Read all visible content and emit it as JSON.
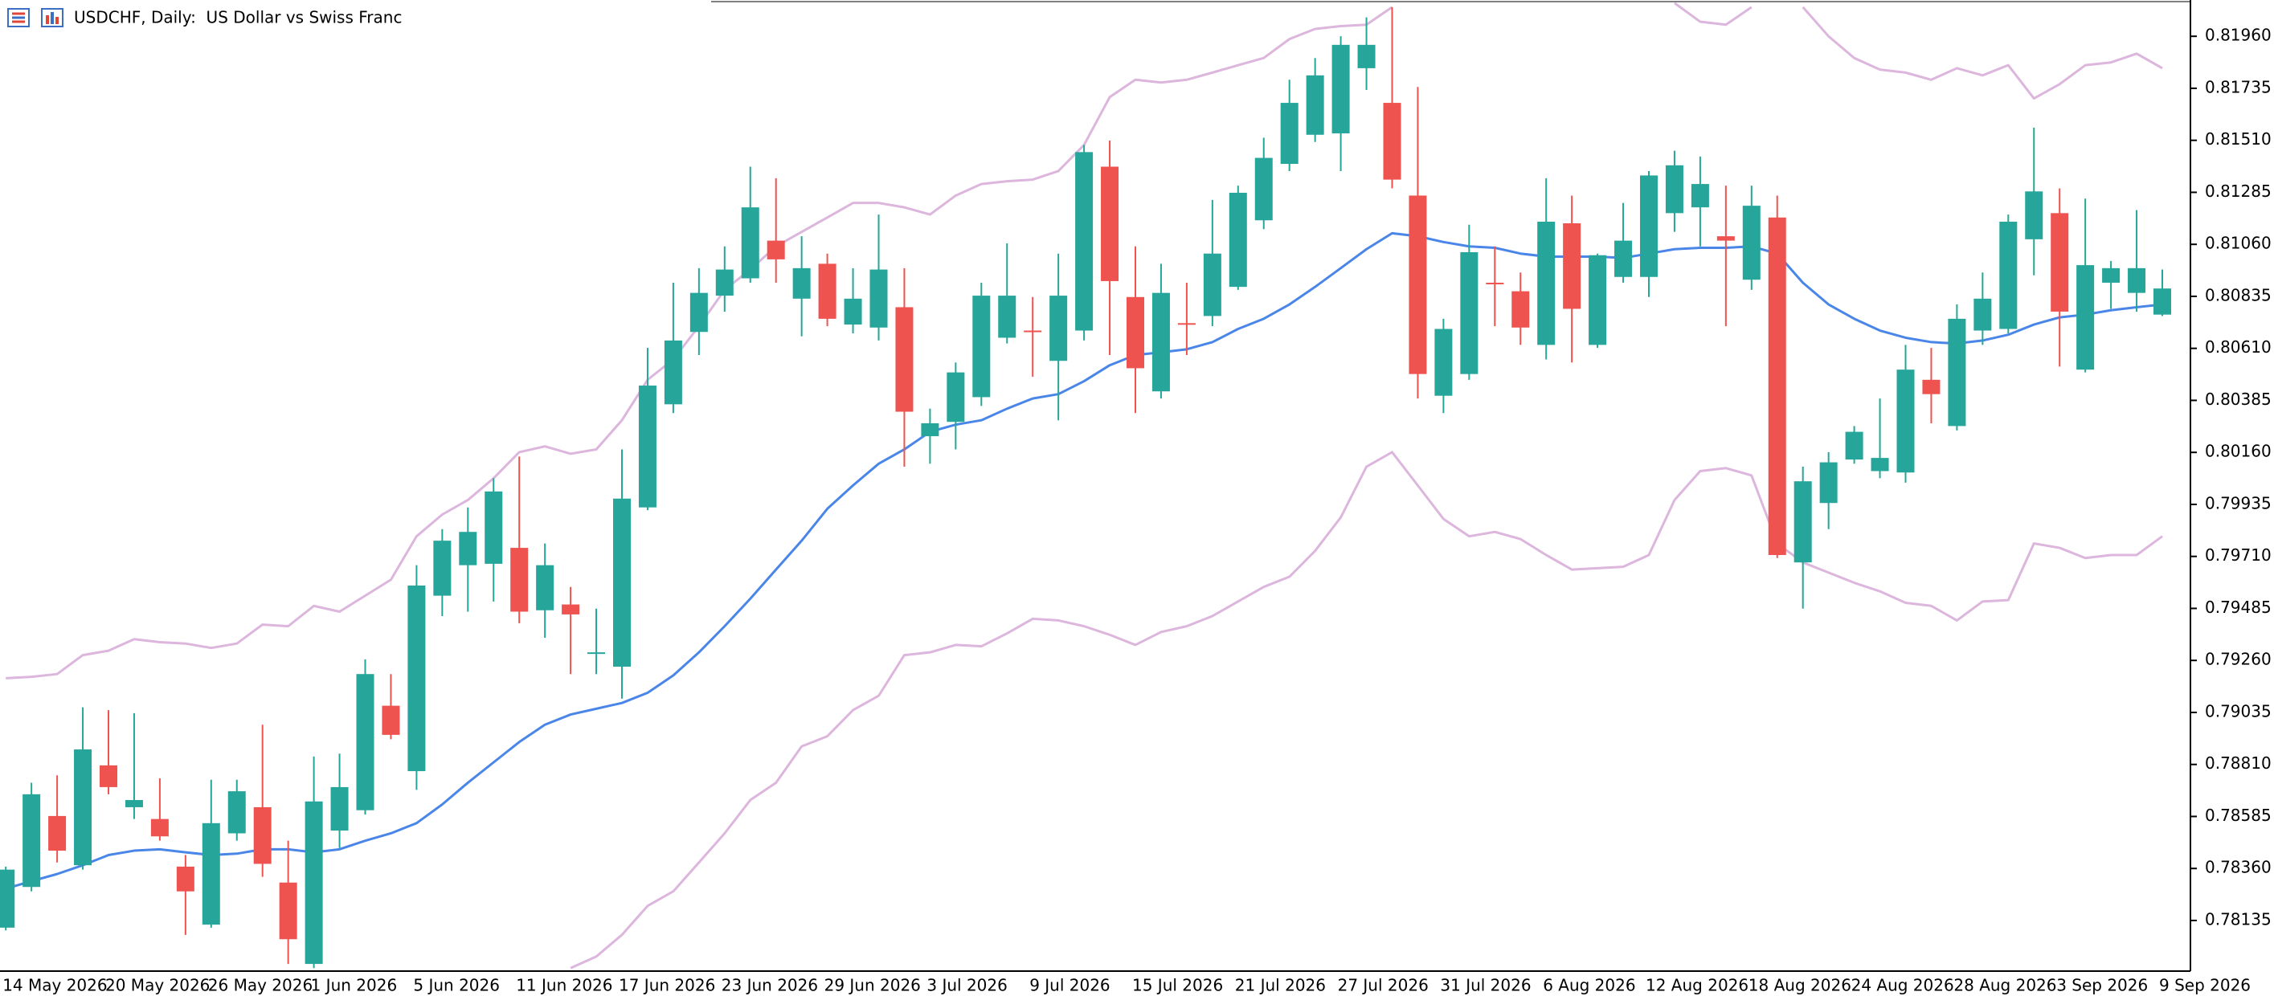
{
  "chart_data": {
    "type": "candlestick",
    "title": "USDCHF, Daily:  US Dollar vs Swiss Franc",
    "categories": [
      "14 May 2026",
      null,
      null,
      null,
      "20 May 2026",
      null,
      null,
      null,
      "26 May 2026",
      null,
      null,
      null,
      "1 Jun 2026",
      null,
      null,
      null,
      "5 Jun 2026",
      null,
      null,
      null,
      "11 Jun 2026",
      null,
      null,
      null,
      "17 Jun 2026",
      null,
      null,
      null,
      "23 Jun 2026",
      null,
      null,
      null,
      "29 Jun 2026",
      null,
      null,
      null,
      "3 Jul 2026",
      null,
      null,
      null,
      "9 Jul 2026",
      null,
      null,
      null,
      "15 Jul 2026",
      null,
      null,
      null,
      "21 Jul 2026",
      null,
      null,
      null,
      "27 Jul 2026",
      null,
      null,
      null,
      "31 Jul 2026",
      null,
      null,
      null,
      "6 Aug 2026",
      null,
      null,
      null,
      "12 Aug 2026",
      null,
      null,
      null,
      "18 Aug 2026",
      null,
      null,
      null,
      "24 Aug 2026",
      null,
      null,
      null,
      "28 Aug 2026",
      null,
      null,
      null,
      "3 Sep 2026",
      null,
      null,
      null,
      "9 Sep 2026"
    ],
    "open": [
      0.78104,
      0.7828,
      0.78587,
      0.78374,
      0.78806,
      0.78625,
      0.78574,
      0.78368,
      0.78117,
      0.78512,
      0.78625,
      0.78299,
      0.77947,
      0.78524,
      0.78612,
      0.79064,
      0.78781,
      0.7954,
      0.79672,
      0.79678,
      0.79747,
      0.79477,
      0.79502,
      0.79289,
      0.79233,
      0.79922,
      0.80368,
      0.80681,
      0.80838,
      0.80913,
      0.81076,
      0.80825,
      0.80976,
      0.80713,
      0.807,
      0.80788,
      0.8023,
      0.80292,
      0.80399,
      0.80656,
      0.80687,
      0.80556,
      0.80687,
      0.81396,
      0.80832,
      0.80424,
      0.80719,
      0.8075,
      0.80876,
      0.81164,
      0.81408,
      0.81534,
      0.8154,
      0.81822,
      0.81672,
      0.81271,
      0.80405,
      0.80499,
      0.80894,
      0.80857,
      0.80625,
      0.81151,
      0.80625,
      0.80919,
      0.80919,
      0.81195,
      0.8122,
      0.81095,
      0.80907,
      0.81176,
      0.79684,
      0.79941,
      0.80129,
      0.80079,
      0.80073,
      0.80474,
      0.80274,
      0.80687,
      0.80694,
      0.81082,
      0.81195,
      0.80518,
      0.80894,
      0.8085,
      0.80756
    ],
    "high": [
      0.78368,
      0.78731,
      0.78763,
      0.79057,
      0.79045,
      0.79032,
      0.7875,
      0.78418,
      0.78744,
      0.78744,
      0.78982,
      0.7848,
      0.78844,
      0.78857,
      0.79264,
      0.79201,
      0.79672,
      0.79828,
      0.79922,
      0.80048,
      0.80142,
      0.79766,
      0.79578,
      0.79484,
      0.80173,
      0.80612,
      0.80894,
      0.80957,
      0.81051,
      0.81396,
      0.81346,
      0.81095,
      0.8102,
      0.80957,
      0.81189,
      0.80957,
      0.80349,
      0.80549,
      0.80894,
      0.81064,
      0.80832,
      0.8102,
      0.8149,
      0.81509,
      0.81051,
      0.80976,
      0.80894,
      0.81252,
      0.81314,
      0.81521,
      0.81772,
      0.81866,
      0.8196,
      0.82042,
      0.82086,
      0.81741,
      0.80738,
      0.81145,
      0.81051,
      0.80938,
      0.81346,
      0.81271,
      0.8102,
      0.81239,
      0.81377,
      0.81465,
      0.8144,
      0.81314,
      0.81314,
      0.81271,
      0.80098,
      0.80161,
      0.80274,
      0.80393,
      0.80625,
      0.80612,
      0.808,
      0.80938,
      0.81189,
      0.81565,
      0.81302,
      0.81258,
      0.80988,
      0.81208,
      0.80951
    ],
    "low": [
      0.78092,
      0.78261,
      0.78386,
      0.78355,
      0.78681,
      0.78574,
      0.7848,
      0.78073,
      0.78104,
      0.7848,
      0.78324,
      0.77947,
      0.77929,
      0.78449,
      0.78593,
      0.78919,
      0.787,
      0.79452,
      0.79471,
      0.79515,
      0.79421,
      0.79358,
      0.79201,
      0.79201,
      0.79095,
      0.7991,
      0.8033,
      0.80581,
      0.80769,
      0.80894,
      0.80894,
      0.80662,
      0.80706,
      0.80675,
      0.80644,
      0.80098,
      0.80111,
      0.80173,
      0.80361,
      0.80631,
      0.80487,
      0.80299,
      0.80644,
      0.80581,
      0.8033,
      0.80393,
      0.80581,
      0.80706,
      0.80863,
      0.81126,
      0.81377,
      0.81503,
      0.81377,
      0.81728,
      0.81302,
      0.80393,
      0.8033,
      0.80474,
      0.80706,
      0.80625,
      0.80562,
      0.80549,
      0.80612,
      0.80894,
      0.80832,
      0.81114,
      0.81051,
      0.80706,
      0.80863,
      0.79703,
      0.79484,
      0.79828,
      0.80111,
      0.80048,
      0.80029,
      0.80286,
      0.80255,
      0.80625,
      0.80675,
      0.80926,
      0.80531,
      0.80506,
      0.80781,
      0.80769,
      0.8075
    ],
    "close": [
      0.78355,
      0.78681,
      0.78437,
      0.78875,
      0.78712,
      0.78656,
      0.78499,
      0.78261,
      0.78556,
      0.78694,
      0.7838,
      0.78054,
      0.7865,
      0.78712,
      0.79201,
      0.78938,
      0.79584,
      0.79778,
      0.79816,
      0.79991,
      0.79471,
      0.79672,
      0.79459,
      0.79295,
      0.7996,
      0.80449,
      0.80644,
      0.8085,
      0.80951,
      0.8122,
      0.80995,
      0.80957,
      0.80738,
      0.80825,
      0.80951,
      0.80336,
      0.80286,
      0.80506,
      0.80838,
      0.80838,
      0.80681,
      0.80838,
      0.81459,
      0.80901,
      0.80524,
      0.8085,
      0.80713,
      0.8102,
      0.81283,
      0.81434,
      0.81672,
      0.81791,
      0.81923,
      0.81923,
      0.8134,
      0.80499,
      0.80694,
      0.81026,
      0.80888,
      0.807,
      0.81158,
      0.80781,
      0.81013,
      0.81076,
      0.81358,
      0.81402,
      0.81321,
      0.81076,
      0.81227,
      0.79716,
      0.80035,
      0.80117,
      0.80249,
      0.80136,
      0.80518,
      0.80412,
      0.80738,
      0.80825,
      0.81158,
      0.81289,
      0.80769,
      0.8097,
      0.80957,
      0.80957,
      0.80869
    ],
    "up_color": "#26a69a",
    "down_color": "#ef5350",
    "overlays": [
      {
        "color": "#dcb6dc",
        "values": [
          0.79183,
          0.79189,
          0.79201,
          0.79283,
          0.79302,
          0.79352,
          0.79339,
          0.79333,
          0.79314,
          0.79333,
          0.79415,
          0.79408,
          0.79496,
          0.79471,
          0.7954,
          0.79609,
          0.79797,
          0.79891,
          0.79954,
          0.80048,
          0.80161,
          0.80186,
          0.80154,
          0.80173,
          0.80299,
          0.80474,
          0.80562,
          0.80706,
          0.80863,
          0.80951,
          0.81051,
          0.81114,
          0.81176,
          0.81239,
          0.81239,
          0.8122,
          0.81189,
          0.81271,
          0.81321,
          0.81333,
          0.8134,
          0.81377,
          0.8149,
          0.81697,
          0.81772,
          0.8176,
          0.81772,
          0.81803,
          0.81835,
          0.81866,
          0.81948,
          0.81992,
          0.82004,
          0.8201,
          0.82086,
          null,
          null,
          null,
          null,
          null,
          null,
          null,
          null,
          null,
          null,
          0.82104,
          0.82023,
          0.8201,
          0.82086,
          null,
          0.82086,
          0.8196,
          0.81866,
          0.81816,
          0.81803,
          0.81772,
          0.81822,
          0.81791,
          0.81835,
          0.81691,
          0.81753,
          0.81835,
          0.81847,
          0.81885,
          0.81822
        ]
      },
      {
        "color": "#4a86e8",
        "values": [
          0.78273,
          0.78305,
          0.78336,
          0.78374,
          0.78418,
          0.78437,
          0.78443,
          0.7843,
          0.78418,
          0.78424,
          0.78443,
          0.78443,
          0.7843,
          0.78443,
          0.7848,
          0.78512,
          0.78556,
          0.78637,
          0.78731,
          0.78819,
          0.78907,
          0.78982,
          0.79026,
          0.79051,
          0.79076,
          0.7912,
          0.79195,
          0.79295,
          0.79408,
          0.79527,
          0.79653,
          0.79778,
          0.79916,
          0.80017,
          0.80111,
          0.80173,
          0.80249,
          0.8028,
          0.80299,
          0.80349,
          0.80393,
          0.80412,
          0.80468,
          0.80537,
          0.80581,
          0.80593,
          0.80606,
          0.80637,
          0.80694,
          0.80738,
          0.808,
          0.80876,
          0.80957,
          0.81039,
          0.81108,
          0.81095,
          0.8107,
          0.81051,
          0.81045,
          0.8102,
          0.81007,
          0.81007,
          0.81007,
          0.81001,
          0.8102,
          0.81039,
          0.81045,
          0.81045,
          0.81051,
          0.8102,
          0.80894,
          0.808,
          0.80738,
          0.80687,
          0.80656,
          0.80637,
          0.80631,
          0.80644,
          0.80669,
          0.80713,
          0.80744,
          0.80756,
          0.80775,
          0.80788,
          0.808
        ]
      },
      {
        "color": "#dcb6dc",
        "values": [
          null,
          null,
          null,
          null,
          null,
          null,
          null,
          null,
          null,
          null,
          null,
          null,
          null,
          null,
          null,
          null,
          null,
          null,
          null,
          null,
          null,
          null,
          0.77929,
          0.77979,
          0.78073,
          0.78198,
          0.78261,
          0.78386,
          0.78512,
          0.78656,
          0.78731,
          0.78888,
          0.78932,
          0.79045,
          0.79107,
          0.79283,
          0.79295,
          0.79327,
          0.79321,
          0.79377,
          0.7944,
          0.79433,
          0.79408,
          0.79371,
          0.79327,
          0.79383,
          0.79408,
          0.79452,
          0.79515,
          0.79578,
          0.79622,
          0.79734,
          0.79879,
          0.80098,
          0.80161,
          0.80017,
          0.79872,
          0.79797,
          0.79816,
          0.79785,
          0.79716,
          0.79653,
          0.79659,
          0.79665,
          0.79716,
          0.79954,
          0.80079,
          0.80092,
          0.8006,
          0.79766,
          0.79684,
          0.7964,
          0.79596,
          0.79559,
          0.79509,
          0.79496,
          0.79433,
          0.79515,
          0.79521,
          0.79766,
          0.79747,
          0.79703,
          0.79716,
          0.79716,
          0.79797
        ]
      }
    ],
    "ylim": [
      0.77916,
      0.82117
    ],
    "yticks": [
      {
        "value": 0.8196,
        "label": "0.81960"
      },
      0.81735,
      {
        "value": 0.8151,
        "label": "0.81510"
      },
      0.81285,
      {
        "value": 0.8106,
        "label": "0.81060"
      },
      0.80835,
      {
        "value": 0.8061,
        "label": "0.80610"
      },
      0.80385,
      {
        "value": 0.8016,
        "label": "0.80160"
      },
      0.79935,
      {
        "value": 0.7971,
        "label": "0.79710"
      },
      0.79485,
      {
        "value": 0.7926,
        "label": "0.79260"
      },
      0.79035,
      {
        "value": 0.7881,
        "label": "0.78810"
      },
      0.78585,
      {
        "value": 0.7836,
        "label": "0.78360"
      },
      0.78135
    ]
  }
}
